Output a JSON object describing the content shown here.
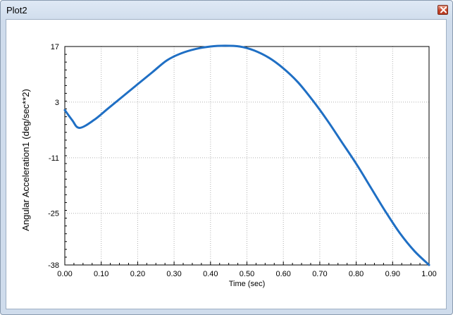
{
  "window": {
    "title": "Plot2",
    "close_icon": "close-icon",
    "accent_color": "#c7442a"
  },
  "chart_data": {
    "type": "line",
    "xlabel": "Time (sec)",
    "ylabel": "Angular Acceleration1 (deg/sec**2)",
    "xlim": [
      0,
      1
    ],
    "ylim": [
      -38,
      17
    ],
    "grid": true,
    "line_color": "#1f6fc4",
    "x_ticks": [
      {
        "value": 0.0,
        "label": "0.00"
      },
      {
        "value": 0.1,
        "label": "0.10"
      },
      {
        "value": 0.2,
        "label": "0.20"
      },
      {
        "value": 0.3,
        "label": "0.30"
      },
      {
        "value": 0.4,
        "label": "0.40"
      },
      {
        "value": 0.5,
        "label": "0.50"
      },
      {
        "value": 0.6,
        "label": "0.60"
      },
      {
        "value": 0.7,
        "label": "0.70"
      },
      {
        "value": 0.8,
        "label": "0.80"
      },
      {
        "value": 0.9,
        "label": "0.90"
      },
      {
        "value": 1.0,
        "label": "1.00"
      }
    ],
    "y_ticks": [
      {
        "value": 17,
        "label": "17"
      },
      {
        "value": 3,
        "label": "3"
      },
      {
        "value": -11,
        "label": "-11"
      },
      {
        "value": -25,
        "label": "-25"
      },
      {
        "value": -38,
        "label": "-38"
      }
    ],
    "series": [
      {
        "x": [
          0.0,
          0.02,
          0.04,
          0.08,
          0.12,
          0.16,
          0.2,
          0.24,
          0.28,
          0.32,
          0.36,
          0.4,
          0.44,
          0.48,
          0.52,
          0.56,
          0.6,
          0.64,
          0.68,
          0.72,
          0.76,
          0.8,
          0.84,
          0.88,
          0.92,
          0.96,
          1.0
        ],
        "y": [
          1.0,
          -1.5,
          -3.5,
          -1.5,
          1.5,
          4.5,
          7.5,
          10.5,
          13.5,
          15.3,
          16.4,
          17.0,
          17.2,
          17.0,
          16.0,
          14.2,
          11.5,
          8.0,
          3.5,
          -1.5,
          -7.0,
          -12.5,
          -18.5,
          -24.5,
          -30.0,
          -34.5,
          -38.0
        ]
      }
    ]
  }
}
